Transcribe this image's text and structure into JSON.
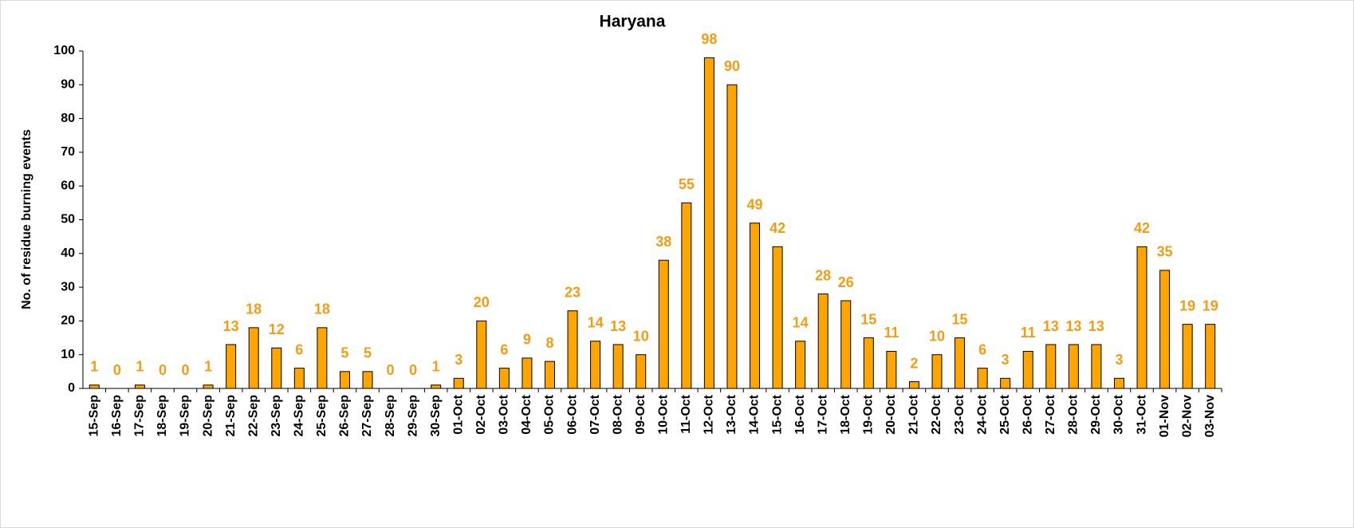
{
  "chart_data": {
    "type": "bar",
    "title": "Haryana",
    "y_label": "No. of residue burning events",
    "categories": [
      "15-Sep",
      "16-Sep",
      "17-Sep",
      "18-Sep",
      "19-Sep",
      "20-Sep",
      "21-Sep",
      "22-Sep",
      "23-Sep",
      "24-Sep",
      "25-Sep",
      "26-Sep",
      "27-Sep",
      "28-Sep",
      "29-Sep",
      "30-Sep",
      "01-Oct",
      "02-Oct",
      "03-Oct",
      "04-Oct",
      "05-Oct",
      "06-Oct",
      "07-Oct",
      "08-Oct",
      "09-Oct",
      "10-Oct",
      "11-Oct",
      "12-Oct",
      "13-Oct",
      "14-Oct",
      "15-Oct",
      "16-Oct",
      "17-Oct",
      "18-Oct",
      "19-Oct",
      "20-Oct",
      "21-Oct",
      "22-Oct",
      "23-Oct",
      "24-Oct",
      "25-Oct",
      "26-Oct",
      "27-Oct",
      "28-Oct",
      "29-Oct",
      "30-Oct",
      "31-Oct",
      "01-Nov",
      "02-Nov",
      "03-Nov"
    ],
    "values": [
      1,
      0,
      1,
      0,
      0,
      1,
      13,
      18,
      12,
      6,
      18,
      5,
      5,
      0,
      0,
      1,
      3,
      20,
      6,
      9,
      8,
      23,
      14,
      13,
      10,
      38,
      55,
      98,
      90,
      49,
      42,
      14,
      28,
      26,
      15,
      11,
      2,
      10,
      15,
      6,
      3,
      11,
      13,
      13,
      13,
      3,
      42,
      35,
      19,
      19
    ],
    "color": "#FFA500",
    "label_color": "#F39C12",
    "ylim": [
      0,
      100
    ],
    "yticks": [
      0,
      10,
      20,
      30,
      40,
      50,
      60,
      70,
      80,
      90,
      100
    ],
    "grid": false
  }
}
